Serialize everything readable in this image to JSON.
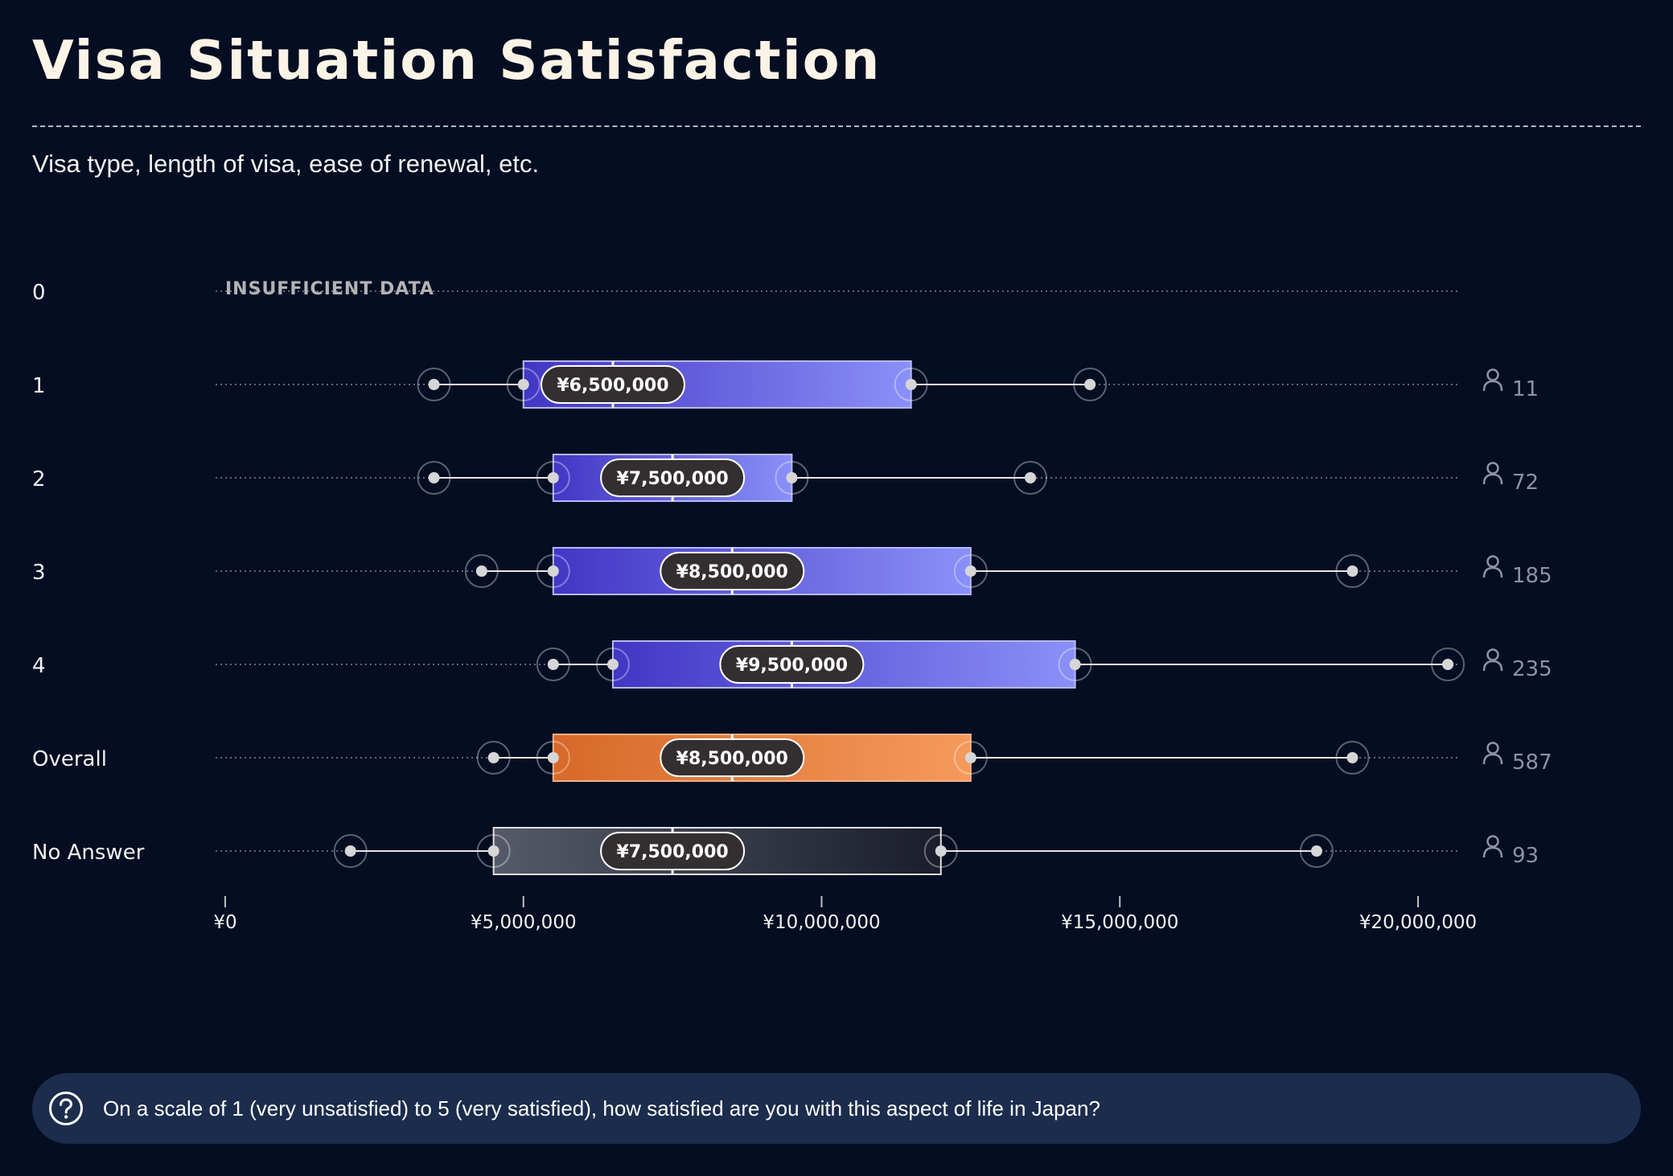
{
  "header": {
    "title": "Visa Situation Satisfaction",
    "subtitle": "Visa type, length of visa, ease of renewal, etc."
  },
  "question": "On a scale of 1 (very unsatisfied) to 5 (very satisfied), how satisfied are you with this aspect of life in Japan?",
  "colors": {
    "background": "#040d21",
    "box_purple_start": "#4236c4",
    "box_purple_end": "#8a90f8",
    "box_orange_start": "#d7692a",
    "box_orange_end": "#f59a5c",
    "box_gray_start": "#565a68",
    "box_gray_end": "#1a1d2a",
    "median_badge": "#332f31",
    "question_bar": "#1b2c4d"
  },
  "icons": {
    "respondents": "person-icon",
    "question": "question-mark-icon"
  },
  "chart_data": {
    "type": "boxplot",
    "orientation": "horizontal",
    "xlim": [
      0,
      20000000
    ],
    "x_ticks": [
      0,
      5000000,
      10000000,
      15000000,
      20000000
    ],
    "x_tick_labels": [
      "¥0",
      "¥5,000,000",
      "¥10,000,000",
      "¥15,000,000",
      "¥20,000,000"
    ],
    "insufficient_label": "INSUFFICIENT DATA",
    "rows": [
      {
        "label": "0",
        "insufficient": true
      },
      {
        "label": "1",
        "min": 3500000,
        "q1": 5000000,
        "median": 6500000,
        "q3": 11500000,
        "max": 14500000,
        "median_label": "¥6,500,000",
        "count": "11",
        "color": "purple"
      },
      {
        "label": "2",
        "min": 3500000,
        "q1": 5500000,
        "median": 7500000,
        "q3": 9500000,
        "max": 13500000,
        "median_label": "¥7,500,000",
        "count": "72",
        "color": "purple"
      },
      {
        "label": "3",
        "min": 4300000,
        "q1": 5500000,
        "median": 8500000,
        "q3": 12500000,
        "max": 18900000,
        "median_label": "¥8,500,000",
        "count": "185",
        "color": "purple"
      },
      {
        "label": "4",
        "min": 5500000,
        "q1": 6500000,
        "median": 9500000,
        "q3": 14250000,
        "max": 20500000,
        "median_label": "¥9,500,000",
        "count": "235",
        "color": "purple"
      },
      {
        "label": "Overall",
        "min": 4500000,
        "q1": 5500000,
        "median": 8500000,
        "q3": 12500000,
        "max": 18900000,
        "median_label": "¥8,500,000",
        "count": "587",
        "color": "orange"
      },
      {
        "label": "No Answer",
        "min": 2100000,
        "q1": 4500000,
        "median": 7500000,
        "q3": 12000000,
        "max": 18300000,
        "median_label": "¥7,500,000",
        "count": "93",
        "color": "gray"
      }
    ]
  }
}
